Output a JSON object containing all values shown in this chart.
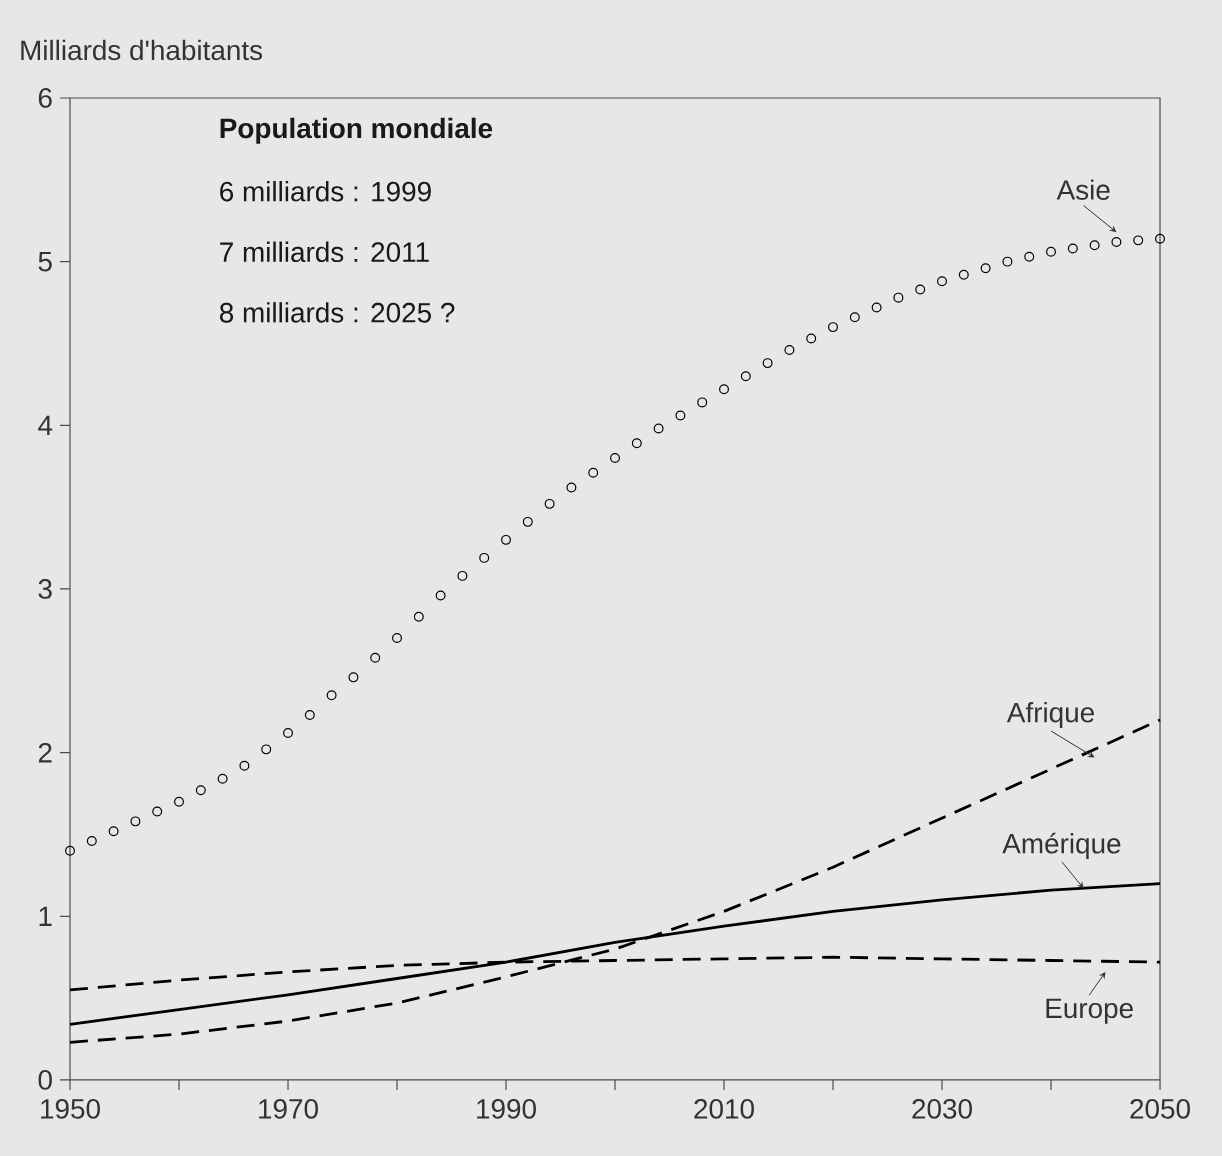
{
  "chart_data": {
    "type": "line",
    "ylabel": "Milliards d'habitants",
    "annotations": [
      "Population mondiale",
      "6 milliards : 1999",
      "7 milliards : 2011",
      "8 milliards : 2025 ?"
    ],
    "x": [
      1950,
      1960,
      1970,
      1980,
      1990,
      2000,
      2010,
      2020,
      2030,
      2040,
      2050
    ],
    "series": [
      {
        "name": "Asie",
        "type": "scatter",
        "marker": "circle",
        "color": "#000000",
        "x": [
          1950,
          1952,
          1954,
          1956,
          1958,
          1960,
          1962,
          1964,
          1966,
          1968,
          1970,
          1972,
          1974,
          1976,
          1978,
          1980,
          1982,
          1984,
          1986,
          1988,
          1990,
          1992,
          1994,
          1996,
          1998,
          2000,
          2002,
          2004,
          2006,
          2008,
          2010,
          2012,
          2014,
          2016,
          2018,
          2020,
          2022,
          2024,
          2026,
          2028,
          2030,
          2032,
          2034,
          2036,
          2038,
          2040,
          2042,
          2044,
          2046,
          2048,
          2050
        ],
        "values": [
          1.4,
          1.46,
          1.52,
          1.58,
          1.64,
          1.7,
          1.77,
          1.84,
          1.92,
          2.02,
          2.12,
          2.23,
          2.35,
          2.46,
          2.58,
          2.7,
          2.83,
          2.96,
          3.08,
          3.19,
          3.3,
          3.41,
          3.52,
          3.62,
          3.71,
          3.8,
          3.89,
          3.98,
          4.06,
          4.14,
          4.22,
          4.3,
          4.38,
          4.46,
          4.53,
          4.6,
          4.66,
          4.72,
          4.78,
          4.83,
          4.88,
          4.92,
          4.96,
          5.0,
          5.03,
          5.06,
          5.08,
          5.1,
          5.12,
          5.13,
          5.14
        ]
      },
      {
        "name": "Afrique",
        "line_style": "dashed",
        "color": "#000000",
        "values": [
          0.23,
          0.28,
          0.36,
          0.47,
          0.63,
          0.8,
          1.03,
          1.3,
          1.6,
          1.9,
          2.2
        ]
      },
      {
        "name": "Amérique",
        "line_style": "solid",
        "color": "#000000",
        "values": [
          0.34,
          0.43,
          0.52,
          0.62,
          0.72,
          0.84,
          0.94,
          1.03,
          1.1,
          1.16,
          1.2
        ]
      },
      {
        "name": "Europe",
        "line_style": "dashed",
        "color": "#000000",
        "values": [
          0.55,
          0.61,
          0.66,
          0.7,
          0.72,
          0.73,
          0.74,
          0.75,
          0.74,
          0.73,
          0.72
        ]
      }
    ],
    "xlim": [
      1950,
      2050
    ],
    "xticks": [
      1950,
      {
        "value": 1960,
        "label": null
      },
      1970,
      {
        "value": 1980,
        "label": null
      },
      1990,
      {
        "value": 2000,
        "label": null
      },
      2010,
      {
        "value": 2020,
        "label": null
      },
      2030,
      {
        "value": 2040,
        "label": null
      },
      2050
    ],
    "ylim": [
      0,
      6
    ],
    "yticks": [
      0,
      1,
      2,
      3,
      4,
      5,
      6
    ],
    "grid": false
  }
}
